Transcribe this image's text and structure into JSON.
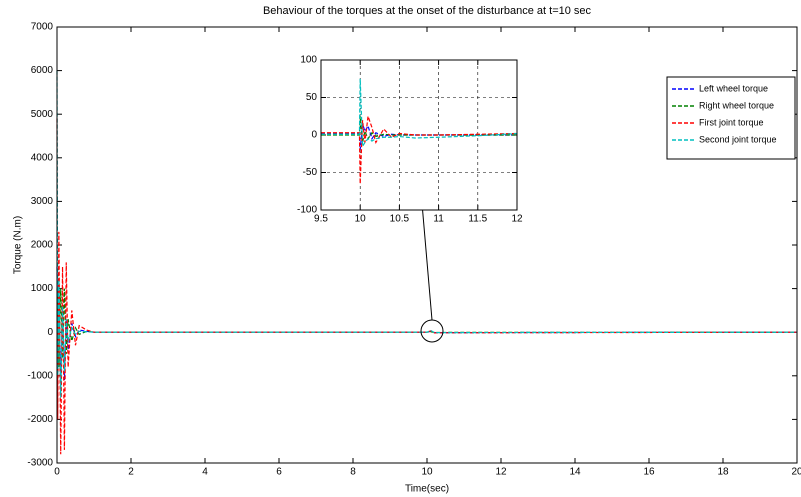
{
  "chart_data": [
    {
      "type": "line",
      "title": "Behaviour of the torques at the onset of the disturbance at t=10 sec",
      "x_label": "Time(sec)",
      "y_label": "Torque (N.m)",
      "x": [
        0,
        0.02,
        0.05,
        0.1,
        0.15,
        0.2,
        0.25,
        0.3,
        0.4,
        0.5,
        0.6,
        0.8,
        1,
        1.5,
        2,
        5,
        10,
        10.1,
        10.2,
        20
      ],
      "series": [
        {
          "name": "Left wheel torque",
          "color": "#0000ff",
          "values": [
            1500,
            -500,
            800,
            -1000,
            500,
            -1100,
            300,
            -400,
            200,
            -100,
            50,
            20,
            0,
            0,
            0,
            0,
            0,
            20,
            -10,
            0
          ]
        },
        {
          "name": "Right wheel torque",
          "color": "#008000",
          "values": [
            1000,
            600,
            -800,
            1000,
            -600,
            1000,
            -500,
            300,
            -200,
            100,
            -50,
            20,
            0,
            0,
            0,
            0,
            0,
            10,
            -5,
            0
          ]
        },
        {
          "name": "First joint torque",
          "color": "#ff0000",
          "values": [
            4900,
            -2000,
            2300,
            -2800,
            1500,
            -2700,
            1600,
            -800,
            500,
            -300,
            150,
            50,
            0,
            0,
            0,
            0,
            0,
            30,
            -15,
            0
          ]
        },
        {
          "name": "Second joint torque",
          "color": "#00bfbf",
          "values": [
            6000,
            -1000,
            1200,
            -1500,
            600,
            -900,
            300,
            -200,
            100,
            -50,
            20,
            10,
            0,
            0,
            0,
            0,
            0,
            40,
            -10,
            0
          ]
        }
      ],
      "xlim": [
        0,
        20
      ],
      "xticks": [
        0,
        2,
        4,
        6,
        8,
        10,
        12,
        14,
        16,
        18,
        20
      ],
      "ylim": [
        -3000,
        7000
      ],
      "yticks": [
        -3000,
        -2000,
        -1000,
        0,
        1000,
        2000,
        3000,
        4000,
        5000,
        6000,
        7000
      ],
      "grid": false,
      "legend": "northeast"
    },
    {
      "type": "line",
      "x": [
        9.5,
        9.99,
        10,
        10.03,
        10.06,
        10.1,
        10.15,
        10.2,
        10.3,
        10.4,
        10.5,
        10.7,
        11,
        11.5,
        12
      ],
      "series": [
        {
          "color": "#0000ff",
          "values": [
            2,
            2,
            -20,
            15,
            5,
            12,
            -5,
            3,
            -2,
            1,
            0,
            0,
            0,
            0,
            0
          ]
        },
        {
          "color": "#008000",
          "values": [
            0,
            0,
            25,
            -10,
            5,
            -5,
            3,
            -2,
            1,
            0,
            0,
            0,
            0,
            0,
            0
          ]
        },
        {
          "color": "#ff0000",
          "values": [
            3,
            3,
            -65,
            20,
            -10,
            25,
            10,
            -10,
            8,
            -3,
            2,
            0,
            0,
            1,
            2
          ]
        },
        {
          "color": "#00bfbf",
          "values": [
            1,
            1,
            75,
            -15,
            -10,
            -5,
            -8,
            -5,
            -3,
            -3,
            -2,
            -4,
            -3,
            -1,
            2
          ]
        }
      ],
      "xlim": [
        9.5,
        12
      ],
      "xticks": [
        9.5,
        10,
        10.5,
        11,
        11.5,
        12
      ],
      "ylim": [
        -100,
        100
      ],
      "yticks": [
        -100,
        -50,
        0,
        50,
        100
      ],
      "grid": true
    }
  ]
}
